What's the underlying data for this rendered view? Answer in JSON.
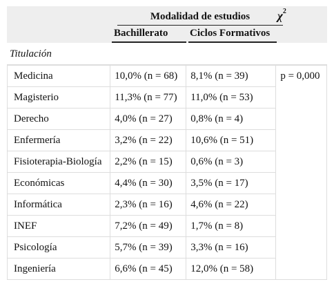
{
  "header": {
    "group_label": "Modalidad de estudios",
    "chi_symbol": "χ",
    "chi_exponent": "2",
    "col_bachillerato": "Bachillerato",
    "col_ciclos": "Ciclos Formativos"
  },
  "section_label": "Titulación",
  "p_value": "p = 0,000",
  "rows": [
    {
      "name": "Medicina",
      "bachillerato": "10,0% (n = 68)",
      "ciclos": "8,1% (n = 39)"
    },
    {
      "name": "Magisterio",
      "bachillerato": "11,3% (n = 77)",
      "ciclos": "11,0% (n = 53)"
    },
    {
      "name": "Derecho",
      "bachillerato": "4,0% (n = 27)",
      "ciclos": "0,8% (n = 4)"
    },
    {
      "name": "Enfermería",
      "bachillerato": "3,2% (n = 22)",
      "ciclos": "10,6% (n = 51)"
    },
    {
      "name": "Fisioterapia-Biología",
      "bachillerato": "2,2% (n = 15)",
      "ciclos": "0,6% (n = 3)"
    },
    {
      "name": "Económicas",
      "bachillerato": "4,4% (n = 30)",
      "ciclos": "3,5% (n = 17)"
    },
    {
      "name": "Informática",
      "bachillerato": "2,3% (n = 16)",
      "ciclos": "4,6% (n = 22)"
    },
    {
      "name": "INEF",
      "bachillerato": "7,2% (n = 49)",
      "ciclos": "1,7% (n = 8)"
    },
    {
      "name": "Psicología",
      "bachillerato": "5,7% (n = 39)",
      "ciclos": "3,3% (n = 16)"
    },
    {
      "name": "Ingeniería",
      "bachillerato": "6,6% (n = 45)",
      "ciclos": "12,0% (n = 58)"
    }
  ]
}
